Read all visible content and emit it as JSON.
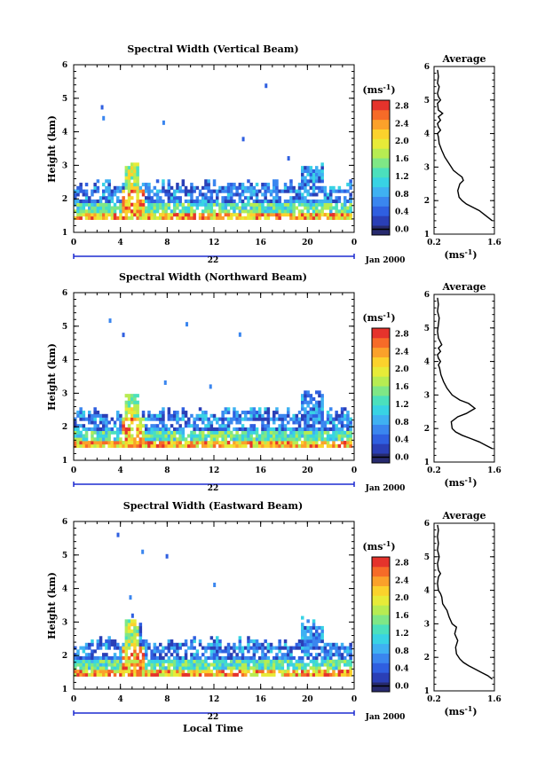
{
  "colors": {
    "scale": [
      "#272a6e",
      "#2a3fb6",
      "#2f5fe0",
      "#3a86ef",
      "#3fb1f2",
      "#38d3e4",
      "#4be0bd",
      "#7fe786",
      "#b7ec52",
      "#e7eb38",
      "#fbd22c",
      "#fba12a",
      "#f66b28",
      "#e5332c"
    ]
  },
  "chart_data": [
    {
      "type": "heatmap",
      "title": "Spectral Width (Vertical Beam)",
      "xlabel": "",
      "ylabel": "Height (km)",
      "x_ticks": [
        "0",
        "4",
        "8",
        "12",
        "16",
        "20",
        "0"
      ],
      "y_ticks": [
        "1",
        "2",
        "3",
        "4",
        "5",
        "6"
      ],
      "xlim": [
        0,
        24
      ],
      "ylim": [
        1,
        6
      ],
      "date_label": "22",
      "date_suffix": "Jan 2000",
      "colorbar": {
        "unit": "(ms",
        "unit_sup": "-1",
        "unit_close": ")",
        "ticks": [
          "0.0",
          "0.4",
          "0.8",
          "1.2",
          "1.6",
          "2.0",
          "2.4",
          "2.8"
        ]
      },
      "profile": {
        "title": "Average",
        "x_ticks": [
          "0.2",
          "1.6"
        ],
        "y_ticks": [
          "1",
          "2",
          "3",
          "4",
          "5",
          "6"
        ],
        "xlim": [
          0.2,
          1.6
        ],
        "ylim": [
          1,
          6
        ],
        "xlabel": "(ms",
        "xlabel_sup": "-1",
        "xlabel_close": ")",
        "x": [
          1.55,
          1.45,
          1.35,
          1.25,
          1.1,
          0.95,
          0.85,
          0.78,
          0.75,
          0.8,
          0.88,
          0.85,
          0.75,
          0.65,
          0.55,
          0.45,
          0.38,
          0.32,
          0.3,
          0.28,
          0.35,
          0.3,
          0.28,
          0.35,
          0.3,
          0.4,
          0.3,
          0.28,
          0.35,
          0.3,
          0.28,
          0.3,
          0.32,
          0.28,
          0.3,
          0.28
        ],
        "y": [
          1.4,
          1.5,
          1.6,
          1.7,
          1.8,
          1.9,
          2.0,
          2.1,
          2.3,
          2.5,
          2.6,
          2.7,
          2.8,
          2.9,
          3.1,
          3.3,
          3.5,
          3.7,
          3.9,
          4.0,
          4.1,
          4.2,
          4.3,
          4.4,
          4.5,
          4.6,
          4.7,
          4.9,
          5.0,
          5.1,
          5.2,
          5.3,
          5.4,
          5.5,
          5.7,
          5.9
        ]
      }
    },
    {
      "type": "heatmap",
      "title": "Spectral Width (Northward Beam)",
      "xlabel": "",
      "ylabel": "Height (km)",
      "x_ticks": [
        "0",
        "4",
        "8",
        "12",
        "16",
        "20",
        "0"
      ],
      "y_ticks": [
        "1",
        "2",
        "3",
        "4",
        "5",
        "6"
      ],
      "xlim": [
        0,
        24
      ],
      "ylim": [
        1,
        6
      ],
      "date_label": "22",
      "date_suffix": "Jan 2000",
      "colorbar": {
        "unit": "(ms",
        "unit_sup": "-1",
        "unit_close": ")",
        "ticks": [
          "0.0",
          "0.4",
          "0.8",
          "1.2",
          "1.6",
          "2.0",
          "2.4",
          "2.8"
        ]
      },
      "profile": {
        "title": "Average",
        "x_ticks": [
          "0.2",
          "1.6"
        ],
        "y_ticks": [
          "1",
          "2",
          "3",
          "4",
          "5",
          "6"
        ],
        "xlim": [
          0.2,
          1.6
        ],
        "ylim": [
          1,
          6
        ],
        "xlabel": "(ms",
        "xlabel_sup": "-1",
        "xlabel_close": ")",
        "x": [
          1.55,
          1.4,
          1.25,
          1.05,
          0.85,
          0.7,
          0.62,
          0.6,
          0.75,
          0.95,
          1.15,
          1.0,
          0.8,
          0.62,
          0.5,
          0.42,
          0.36,
          0.33,
          0.3,
          0.35,
          0.3,
          0.28,
          0.35,
          0.3,
          0.38,
          0.3,
          0.28,
          0.3,
          0.32,
          0.28,
          0.3,
          0.28
        ],
        "y": [
          1.4,
          1.5,
          1.6,
          1.7,
          1.8,
          1.9,
          2.0,
          2.2,
          2.35,
          2.45,
          2.6,
          2.75,
          2.85,
          3.0,
          3.2,
          3.4,
          3.6,
          3.8,
          3.9,
          4.0,
          4.1,
          4.2,
          4.3,
          4.4,
          4.5,
          4.7,
          4.9,
          5.1,
          5.3,
          5.5,
          5.7,
          5.9
        ]
      }
    },
    {
      "type": "heatmap",
      "title": "Spectral Width (Eastward Beam)",
      "xlabel": "Local Time",
      "ylabel": "Height (km)",
      "x_ticks": [
        "0",
        "4",
        "8",
        "12",
        "16",
        "20",
        "0"
      ],
      "y_ticks": [
        "1",
        "2",
        "3",
        "4",
        "5",
        "6"
      ],
      "xlim": [
        0,
        24
      ],
      "ylim": [
        1,
        6
      ],
      "date_label": "22",
      "date_suffix": "Jan 2000",
      "colorbar": {
        "unit": "(ms",
        "unit_sup": "-1",
        "unit_close": ")",
        "ticks": [
          "0.0",
          "0.4",
          "0.8",
          "1.2",
          "1.6",
          "2.0",
          "2.4",
          "2.8"
        ]
      },
      "profile": {
        "title": "Average",
        "x_ticks": [
          "0.2",
          "1.6"
        ],
        "y_ticks": [
          "1",
          "2",
          "3",
          "4",
          "5",
          "6"
        ],
        "xlim": [
          0.2,
          1.6
        ],
        "ylim": [
          1,
          6
        ],
        "xlabel": "(ms",
        "xlabel_sup": "-1",
        "xlabel_close": ")",
        "x": [
          1.55,
          1.45,
          1.3,
          1.15,
          1.0,
          0.88,
          0.8,
          0.72,
          0.7,
          0.75,
          0.68,
          0.72,
          0.62,
          0.55,
          0.5,
          0.45,
          0.4,
          0.38,
          0.35,
          0.3,
          0.28,
          0.3,
          0.35,
          0.3,
          0.28,
          0.32,
          0.28,
          0.3,
          0.28,
          0.3,
          0.28
        ],
        "y": [
          1.35,
          1.45,
          1.55,
          1.65,
          1.75,
          1.85,
          1.95,
          2.1,
          2.3,
          2.5,
          2.7,
          2.9,
          3.0,
          3.2,
          3.4,
          3.5,
          3.6,
          3.8,
          3.9,
          4.0,
          4.2,
          4.4,
          4.5,
          4.6,
          4.8,
          5.0,
          5.2,
          5.4,
          5.6,
          5.8,
          5.95
        ]
      }
    }
  ]
}
